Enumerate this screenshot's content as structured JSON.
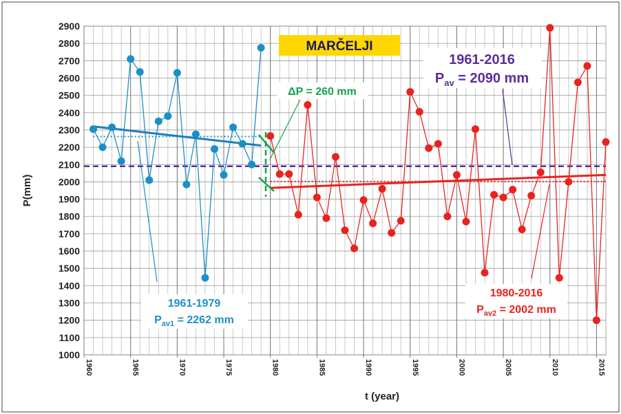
{
  "chart_data": {
    "type": "line",
    "title": "MARČELJI",
    "x_label": "t (year)",
    "y_label": "P(mm)",
    "xlim": [
      1960,
      2016
    ],
    "ylim": [
      1000,
      2900
    ],
    "xticks": [
      1960,
      1965,
      1970,
      1975,
      1980,
      1985,
      1990,
      1995,
      2000,
      2005,
      2010,
      2015
    ],
    "yticks": [
      1000,
      1100,
      1200,
      1300,
      1400,
      1500,
      1600,
      1700,
      1800,
      1900,
      2000,
      2100,
      2200,
      2300,
      2400,
      2500,
      2600,
      2700,
      2800,
      2900
    ],
    "grid": true,
    "series": [
      {
        "name": "1961-1979",
        "color": "#1b8fc7",
        "x": [
          1961,
          1962,
          1963,
          1964,
          1965,
          1966,
          1967,
          1968,
          1969,
          1970,
          1971,
          1972,
          1973,
          1974,
          1975,
          1976,
          1977,
          1978,
          1979
        ],
        "values": [
          2305,
          2200,
          2315,
          2120,
          2710,
          2635,
          2010,
          2350,
          2380,
          2630,
          1985,
          2275,
          1445,
          2190,
          2040,
          2315,
          2220,
          2100,
          2775
        ]
      },
      {
        "name": "1980-2016",
        "color": "#e8231f",
        "x": [
          1980,
          1981,
          1982,
          1983,
          1984,
          1985,
          1986,
          1987,
          1988,
          1989,
          1990,
          1991,
          1992,
          1993,
          1994,
          1995,
          1996,
          1997,
          1998,
          1999,
          2000,
          2001,
          2002,
          2003,
          2004,
          2005,
          2006,
          2007,
          2008,
          2009,
          2010,
          2011,
          2012,
          2013,
          2014,
          2015,
          2016
        ],
        "values": [
          2265,
          2045,
          2045,
          1810,
          2445,
          1910,
          1790,
          2145,
          1720,
          1615,
          1895,
          1760,
          1960,
          1705,
          1775,
          2520,
          2405,
          2195,
          2220,
          1800,
          2040,
          1770,
          2305,
          1475,
          1925,
          1910,
          1955,
          1725,
          1920,
          2055,
          2890,
          1445,
          2000,
          2575,
          2670,
          1200,
          2230
        ]
      }
    ],
    "trend_lines": [
      {
        "color": "#1b7fb8",
        "x": [
          1961,
          1979
        ],
        "y": [
          2320,
          2210
        ]
      },
      {
        "color": "#e8231f",
        "x": [
          1980,
          2016
        ],
        "y": [
          1965,
          2040
        ]
      }
    ],
    "mean_lines": [
      {
        "color": "#1b8fc7",
        "x": [
          1961,
          1979
        ],
        "value": 2262,
        "style": "dotted"
      },
      {
        "color": "#e8231f",
        "x": [
          1980,
          2016
        ],
        "value": 2002,
        "style": "dotted"
      },
      {
        "color": "#5b2d9a",
        "x": [
          1960,
          2016
        ],
        "value": 2090,
        "style": "dashed"
      }
    ],
    "annotations": [
      {
        "period": "1961-1979",
        "symbol": "P",
        "sub": "av1",
        "value_text": " = 2262 mm"
      },
      {
        "period": "1980-2016",
        "symbol": "P",
        "sub": "av2",
        "value_text": " = 2002 mm"
      },
      {
        "period": "1961-2016",
        "symbol": "P",
        "sub": "av",
        "value_text": " = 2090 mm"
      },
      {
        "text": "ΔP = 260 mm"
      }
    ]
  }
}
